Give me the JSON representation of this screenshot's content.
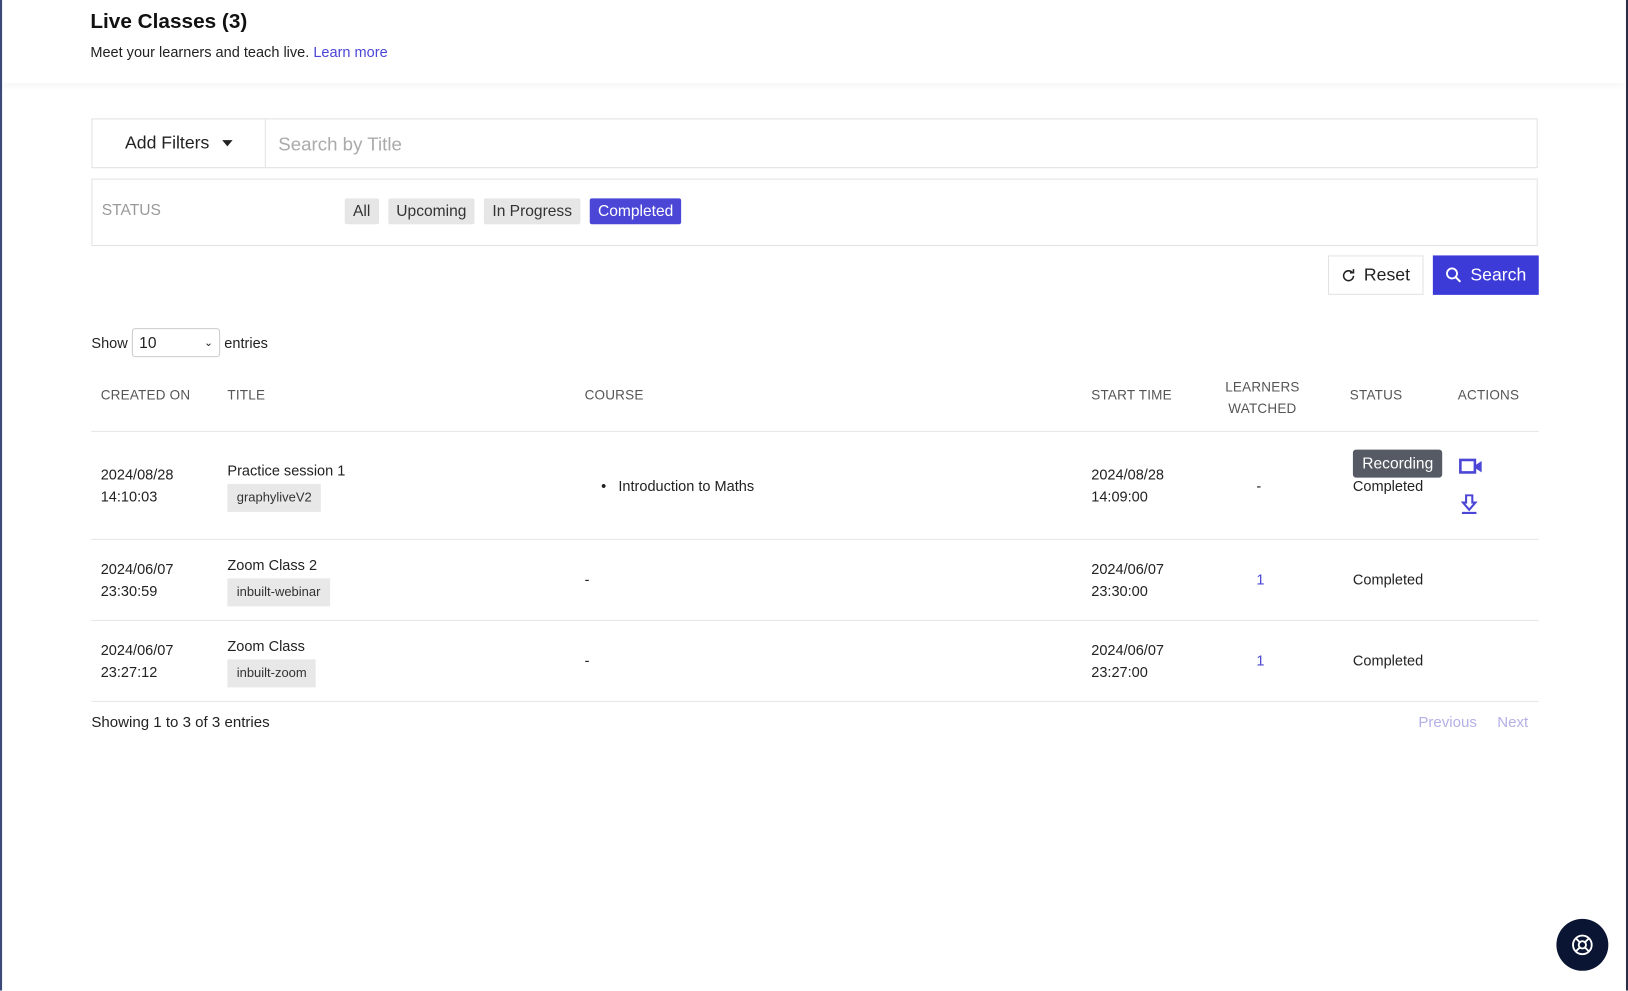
{
  "header": {
    "title": "Live Classes (3)",
    "subtitle": "Meet your learners and teach live.",
    "learn_more": "Learn more"
  },
  "filters": {
    "add_filters": "Add Filters",
    "search_placeholder": "Search by Title",
    "status_label": "STATUS",
    "chips": [
      "All",
      "Upcoming",
      "In Progress",
      "Completed"
    ],
    "active_chip": "Completed",
    "reset": "Reset",
    "search": "Search"
  },
  "entries": {
    "show": "Show",
    "value": "10",
    "suffix": "entries"
  },
  "table": {
    "headers": [
      "CREATED ON",
      "TITLE",
      "COURSE",
      "START TIME",
      "LEARNERS",
      "WATCHED",
      "STATUS",
      "ACTIONS"
    ],
    "rows": [
      {
        "created_date": "2024/08/28",
        "created_time": "14:10:03",
        "title": "Practice session 1",
        "tag": "graphyliveV2",
        "course": "Introduction to Maths",
        "start_date": "2024/08/28",
        "start_time": "14:09:00",
        "learners": "-",
        "status": "Completed"
      },
      {
        "created_date": "2024/06/07",
        "created_time": "23:30:59",
        "title": "Zoom Class 2",
        "tag": "inbuilt-webinar",
        "course": "-",
        "start_date": "2024/06/07",
        "start_time": "23:30:00",
        "learners": "1",
        "status": "Completed"
      },
      {
        "created_date": "2024/06/07",
        "created_time": "23:27:12",
        "title": "Zoom Class",
        "tag": "inbuilt-zoom",
        "course": "-",
        "start_date": "2024/06/07",
        "start_time": "23:27:00",
        "learners": "1",
        "status": "Completed"
      }
    ]
  },
  "tooltip": "Recording",
  "footer": {
    "showing": "Showing 1 to 3 of 3 entries",
    "previous": "Previous",
    "next": "Next"
  },
  "colors": {
    "accent": "#4b46d6",
    "help_button": "#0a1433"
  }
}
